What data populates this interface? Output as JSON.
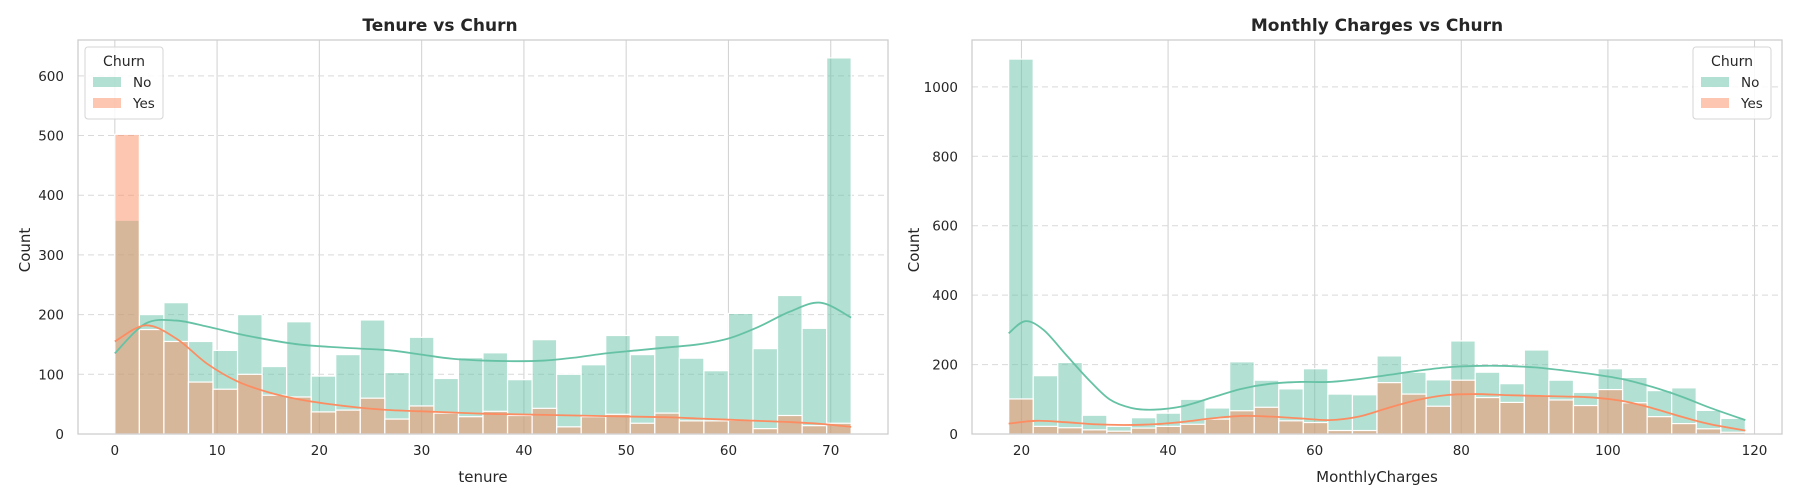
{
  "chart_data": [
    {
      "type": "histogram",
      "title": "Tenure vs Churn",
      "xlabel": "tenure",
      "ylabel": "Count",
      "xlim": [
        -3.6,
        75.6
      ],
      "ylim": [
        0,
        660
      ],
      "xticks": [
        0,
        10,
        20,
        30,
        40,
        50,
        60,
        70
      ],
      "yticks": [
        0,
        100,
        200,
        300,
        400,
        500,
        600
      ],
      "legend": {
        "title": "Churn",
        "position": "top-left",
        "entries": [
          "No",
          "Yes"
        ]
      },
      "bin_start": 0,
      "bin_width": 2.4,
      "colors": {
        "No": "#66c2a5",
        "Yes": "#fc8d62"
      },
      "series": [
        {
          "name": "No",
          "values": [
            358,
            200,
            220,
            155,
            140,
            200,
            113,
            188,
            97,
            133,
            191,
            103,
            162,
            93,
            128,
            136,
            91,
            158,
            100,
            116,
            165,
            133,
            165,
            127,
            106,
            202,
            143,
            232,
            177,
            630
          ]
        },
        {
          "name": "Yes",
          "values": [
            502,
            175,
            155,
            87,
            75,
            100,
            65,
            62,
            37,
            40,
            60,
            25,
            47,
            35,
            29,
            38,
            31,
            43,
            12,
            29,
            33,
            18,
            35,
            22,
            22,
            23,
            9,
            31,
            14,
            18
          ]
        }
      ],
      "kde": [
        {
          "name": "No",
          "x": [
            0,
            3,
            6,
            9,
            12,
            15,
            18,
            21,
            24,
            27,
            30,
            33,
            36,
            39,
            42,
            45,
            48,
            51,
            54,
            57,
            60,
            63,
            66,
            69,
            72
          ],
          "y": [
            135,
            185,
            190,
            180,
            168,
            158,
            150,
            146,
            143,
            140,
            133,
            126,
            123,
            122,
            123,
            128,
            135,
            140,
            145,
            150,
            160,
            180,
            205,
            220,
            195
          ]
        },
        {
          "name": "Yes",
          "x": [
            0,
            3,
            6,
            9,
            12,
            15,
            18,
            21,
            24,
            27,
            30,
            33,
            36,
            39,
            42,
            45,
            48,
            51,
            54,
            57,
            60,
            63,
            66,
            69,
            72
          ],
          "y": [
            155,
            182,
            160,
            118,
            88,
            70,
            58,
            50,
            44,
            40,
            38,
            36,
            34,
            33,
            32,
            31,
            30,
            29,
            28,
            26,
            24,
            22,
            20,
            17,
            12
          ]
        }
      ]
    },
    {
      "type": "histogram",
      "title": "Monthly Charges vs Churn",
      "xlabel": "MonthlyCharges",
      "ylabel": "Count",
      "xlim": [
        13.25,
        123.75
      ],
      "ylim": [
        0,
        1135
      ],
      "xticks": [
        20,
        40,
        60,
        80,
        100,
        120
      ],
      "yticks": [
        0,
        200,
        400,
        600,
        800,
        1000
      ],
      "legend": {
        "title": "Churn",
        "position": "top-right",
        "entries": [
          "No",
          "Yes"
        ]
      },
      "bin_start": 18.25,
      "bin_width": 3.35,
      "colors": {
        "No": "#66c2a5",
        "Yes": "#fc8d62"
      },
      "series": [
        {
          "name": "No",
          "values": [
            1080,
            168,
            206,
            54,
            22,
            47,
            60,
            100,
            75,
            208,
            155,
            130,
            188,
            115,
            113,
            225,
            178,
            156,
            268,
            178,
            145,
            242,
            155,
            120,
            188,
            163,
            125,
            133,
            68,
            45
          ]
        },
        {
          "name": "Yes",
          "values": [
            101,
            22,
            18,
            12,
            8,
            17,
            22,
            28,
            43,
            67,
            77,
            38,
            33,
            10,
            10,
            148,
            115,
            80,
            155,
            105,
            91,
            110,
            98,
            82,
            128,
            90,
            50,
            30,
            15,
            5
          ]
        }
      ],
      "kde": [
        {
          "name": "No",
          "x": [
            18.25,
            20.5,
            23,
            26,
            29,
            32,
            35,
            38,
            42,
            46,
            50,
            54,
            58,
            62,
            66,
            70,
            74,
            78,
            82,
            86,
            90,
            94,
            98,
            102,
            106,
            110,
            114,
            118.75
          ],
          "y": [
            290,
            325,
            300,
            230,
            160,
            100,
            75,
            70,
            80,
            105,
            130,
            145,
            150,
            150,
            158,
            170,
            182,
            192,
            196,
            196,
            192,
            183,
            172,
            158,
            136,
            108,
            75,
            40
          ]
        },
        {
          "name": "Yes",
          "x": [
            18.25,
            22,
            26,
            30,
            34,
            38,
            42,
            46,
            50,
            54,
            58,
            62,
            66,
            70,
            74,
            78,
            82,
            86,
            90,
            94,
            98,
            102,
            106,
            110,
            114,
            118.75
          ],
          "y": [
            30,
            38,
            34,
            28,
            26,
            28,
            35,
            45,
            52,
            50,
            45,
            40,
            50,
            75,
            98,
            112,
            115,
            112,
            110,
            108,
            105,
            95,
            75,
            50,
            28,
            10
          ]
        }
      ]
    }
  ]
}
